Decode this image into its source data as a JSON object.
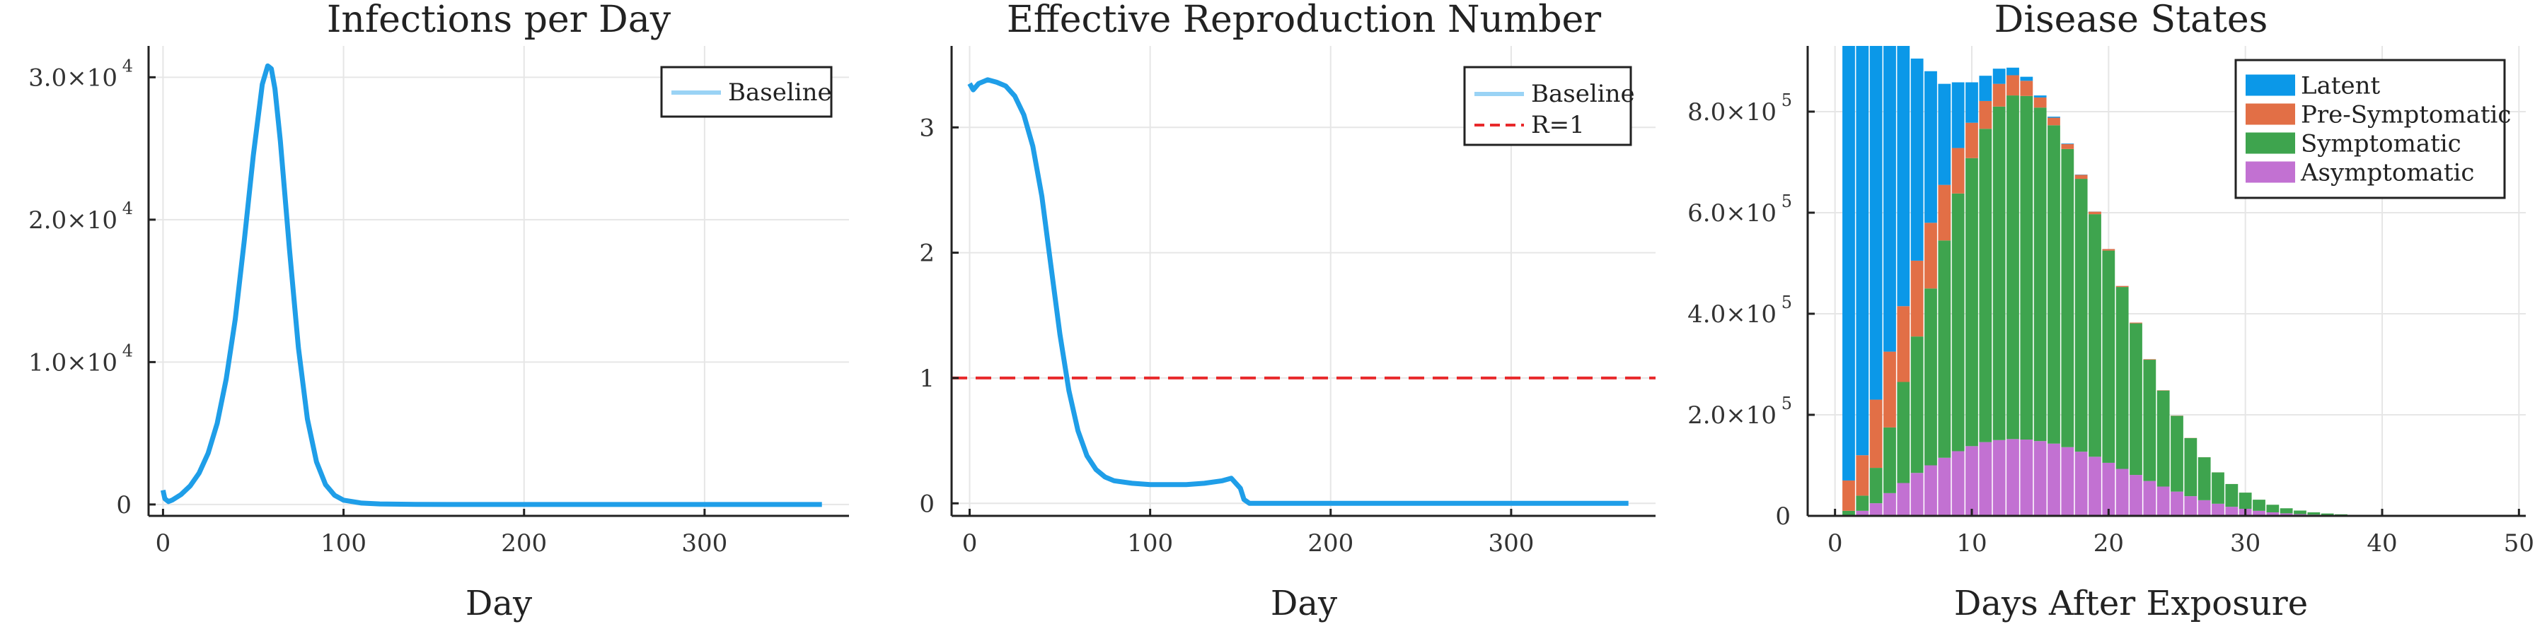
{
  "chart_data": [
    {
      "type": "line",
      "title": "Infections per Day",
      "xlabel": "Day",
      "ylabel": "",
      "xlim": [
        -8,
        380
      ],
      "ylim": [
        -800,
        32200
      ],
      "xticks": [
        0,
        100,
        200,
        300
      ],
      "yticks": [
        {
          "value": 0,
          "mant": "0",
          "exp": ""
        },
        {
          "value": 10000,
          "mant": "1.0×10",
          "exp": "4"
        },
        {
          "value": 20000,
          "mant": "2.0×10",
          "exp": "4"
        },
        {
          "value": 30000,
          "mant": "3.0×10",
          "exp": "4"
        }
      ],
      "grid": true,
      "legend_position": "top-right",
      "series": [
        {
          "name": "Baseline",
          "color": "#1f9ee8",
          "x": [
            0,
            1,
            3,
            5,
            10,
            15,
            20,
            25,
            30,
            35,
            40,
            45,
            50,
            55,
            58,
            60,
            62,
            65,
            70,
            75,
            80,
            85,
            90,
            95,
            100,
            110,
            120,
            140,
            170,
            200,
            250,
            300,
            365
          ],
          "y": [
            1000,
            400,
            200,
            300,
            700,
            1300,
            2200,
            3600,
            5700,
            8800,
            13000,
            18500,
            24500,
            29500,
            30800,
            30600,
            29200,
            25500,
            18000,
            11000,
            6000,
            3000,
            1400,
            650,
            300,
            100,
            40,
            10,
            0,
            0,
            0,
            0,
            0
          ]
        }
      ]
    },
    {
      "type": "line",
      "title": "Effective Reproduction Number",
      "xlabel": "Day",
      "ylabel": "",
      "xlim": [
        -10,
        380
      ],
      "ylim": [
        -0.1,
        3.65
      ],
      "xticks": [
        0,
        100,
        200,
        300
      ],
      "yticks": [
        {
          "value": 0,
          "mant": "0",
          "exp": ""
        },
        {
          "value": 1,
          "mant": "1",
          "exp": ""
        },
        {
          "value": 2,
          "mant": "2",
          "exp": ""
        },
        {
          "value": 3,
          "mant": "3",
          "exp": ""
        }
      ],
      "grid": true,
      "legend_position": "top-right",
      "series": [
        {
          "name": "Baseline",
          "color": "#1f9ee8",
          "x": [
            0,
            2,
            5,
            10,
            15,
            20,
            25,
            30,
            35,
            40,
            45,
            50,
            55,
            60,
            65,
            70,
            75,
            80,
            90,
            100,
            110,
            120,
            130,
            140,
            145,
            150,
            152,
            155,
            160,
            200,
            250,
            300,
            365
          ],
          "y": [
            3.35,
            3.3,
            3.35,
            3.38,
            3.36,
            3.33,
            3.25,
            3.1,
            2.85,
            2.45,
            1.9,
            1.35,
            0.9,
            0.58,
            0.38,
            0.27,
            0.21,
            0.18,
            0.16,
            0.15,
            0.15,
            0.15,
            0.16,
            0.18,
            0.2,
            0.12,
            0.03,
            0,
            0,
            0,
            0,
            0,
            0
          ]
        },
        {
          "name": "R=1",
          "color": "#e8292b",
          "dashed": true,
          "x": [
            -10,
            380
          ],
          "y": [
            1,
            1
          ]
        }
      ]
    },
    {
      "type": "bar",
      "stacked": true,
      "title": "Disease States",
      "xlabel": "Days After Exposure",
      "ylabel": "",
      "xlim": [
        -2,
        50.5
      ],
      "ylim": [
        0,
        930000
      ],
      "xticks": [
        0,
        10,
        20,
        30,
        40,
        50
      ],
      "yticks": [
        {
          "value": 0,
          "mant": "0",
          "exp": ""
        },
        {
          "value": 200000,
          "mant": "2.0×10",
          "exp": "5"
        },
        {
          "value": 400000,
          "mant": "4.0×10",
          "exp": "5"
        },
        {
          "value": 600000,
          "mant": "6.0×10",
          "exp": "5"
        },
        {
          "value": 800000,
          "mant": "8.0×10",
          "exp": "5"
        }
      ],
      "grid": true,
      "legend_position": "top-right",
      "x": [
        1,
        2,
        3,
        4,
        5,
        6,
        7,
        8,
        9,
        10,
        11,
        12,
        13,
        14,
        15,
        16,
        17,
        18,
        19,
        20,
        21,
        22,
        23,
        24,
        25,
        26,
        27,
        28,
        29,
        30,
        31,
        32,
        33,
        34,
        35,
        36,
        37,
        38,
        39,
        40,
        41,
        42,
        43,
        44,
        45,
        46,
        47,
        48
      ],
      "series": [
        {
          "name": "Asymptomatic",
          "color": "#c271d2",
          "values": [
            2000,
            10000,
            25000,
            45000,
            65000,
            85000,
            100000,
            115000,
            128000,
            138000,
            146000,
            150000,
            152000,
            151000,
            148000,
            143000,
            136000,
            127000,
            117000,
            105000,
            93000,
            81000,
            69000,
            58000,
            48000,
            39000,
            31000,
            24000,
            18000,
            14000,
            10000,
            7000,
            5000,
            3500,
            2500,
            1700,
            1100,
            700,
            400,
            250,
            150,
            100,
            50,
            30,
            20,
            10,
            5,
            2
          ]
        },
        {
          "name": "Symptomatic",
          "color": "#3ea44e",
          "values": [
            8000,
            30000,
            70000,
            130000,
            200000,
            270000,
            350000,
            430000,
            510000,
            570000,
            620000,
            660000,
            680000,
            680000,
            660000,
            630000,
            590000,
            540000,
            480000,
            420000,
            360000,
            300000,
            240000,
            190000,
            150000,
            115000,
            85000,
            62000,
            45000,
            32000,
            22000,
            15000,
            10000,
            7000,
            4500,
            3000,
            2000,
            1300,
            800,
            500,
            300,
            200,
            100,
            60,
            30,
            20,
            10,
            5
          ]
        },
        {
          "name": "Pre-Symptomatic",
          "color": "#e26f46",
          "values": [
            60000,
            80000,
            135000,
            150000,
            150000,
            150000,
            130000,
            110000,
            90000,
            70000,
            55000,
            45000,
            40000,
            30000,
            20000,
            15000,
            10000,
            8000,
            5000,
            3000,
            2000,
            1500,
            1000,
            600,
            400,
            250,
            150,
            100,
            60,
            40,
            25,
            15,
            10,
            6,
            4,
            2,
            1,
            0,
            0,
            0,
            0,
            0,
            0,
            0,
            0,
            0,
            0,
            0
          ]
        },
        {
          "name": "Latent",
          "color": "#0b98e8",
          "values": [
            880000,
            850000,
            800000,
            700000,
            550000,
            400000,
            300000,
            200000,
            130000,
            80000,
            50000,
            30000,
            15000,
            8000,
            4000,
            2000,
            1000,
            500,
            200,
            100,
            50,
            20,
            10,
            5,
            0,
            0,
            0,
            0,
            0,
            0,
            0,
            0,
            0,
            0,
            0,
            0,
            0,
            0,
            0,
            0,
            0,
            0,
            0,
            0,
            0,
            0,
            0,
            0
          ]
        }
      ],
      "legend_order": [
        "Latent",
        "Pre-Symptomatic",
        "Symptomatic",
        "Asymptomatic"
      ]
    }
  ]
}
